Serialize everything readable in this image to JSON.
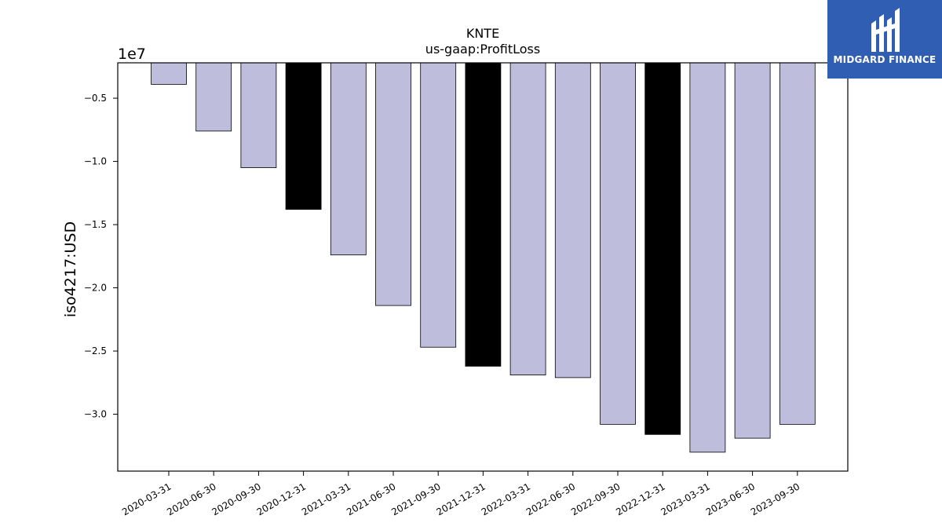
{
  "chart_data": {
    "type": "bar",
    "title": "KNTE",
    "subtitle": "us-gaap:ProfitLoss",
    "xlabel": "",
    "ylabel": "iso4217:USD",
    "y_scale_label": "1e7",
    "ylim": [
      -34500000,
      -2200000
    ],
    "yticks": [
      -5000000,
      -10000000,
      -15000000,
      -20000000,
      -25000000,
      -30000000
    ],
    "ytick_labels": [
      "−0.5",
      "−1.0",
      "−1.5",
      "−2.0",
      "−2.5",
      "−3.0"
    ],
    "categories": [
      "2020-03-31",
      "2020-06-30",
      "2020-09-30",
      "2020-12-31",
      "2021-03-31",
      "2021-06-30",
      "2021-09-30",
      "2021-12-31",
      "2022-03-31",
      "2022-06-30",
      "2022-09-30",
      "2022-12-31",
      "2023-03-31",
      "2023-06-30",
      "2023-09-30"
    ],
    "values": [
      -3900000,
      -7600000,
      -10500000,
      -13800000,
      -17400000,
      -21400000,
      -24700000,
      -26200000,
      -26900000,
      -27100000,
      -30800000,
      -31600000,
      -33000000,
      -31900000,
      -30800000
    ],
    "bar_colors": [
      "#bfbddc",
      "#bfbddc",
      "#bfbddc",
      "#000000",
      "#bfbddc",
      "#bfbddc",
      "#bfbddc",
      "#000000",
      "#bfbddc",
      "#bfbddc",
      "#bfbddc",
      "#000000",
      "#bfbddc",
      "#bfbddc",
      "#bfbddc"
    ],
    "grid": false,
    "legend": "none"
  },
  "logo": {
    "text": "MIDGARD FINANCE",
    "background": "#2f5eb3",
    "icon": "midgard-logo-icon"
  }
}
